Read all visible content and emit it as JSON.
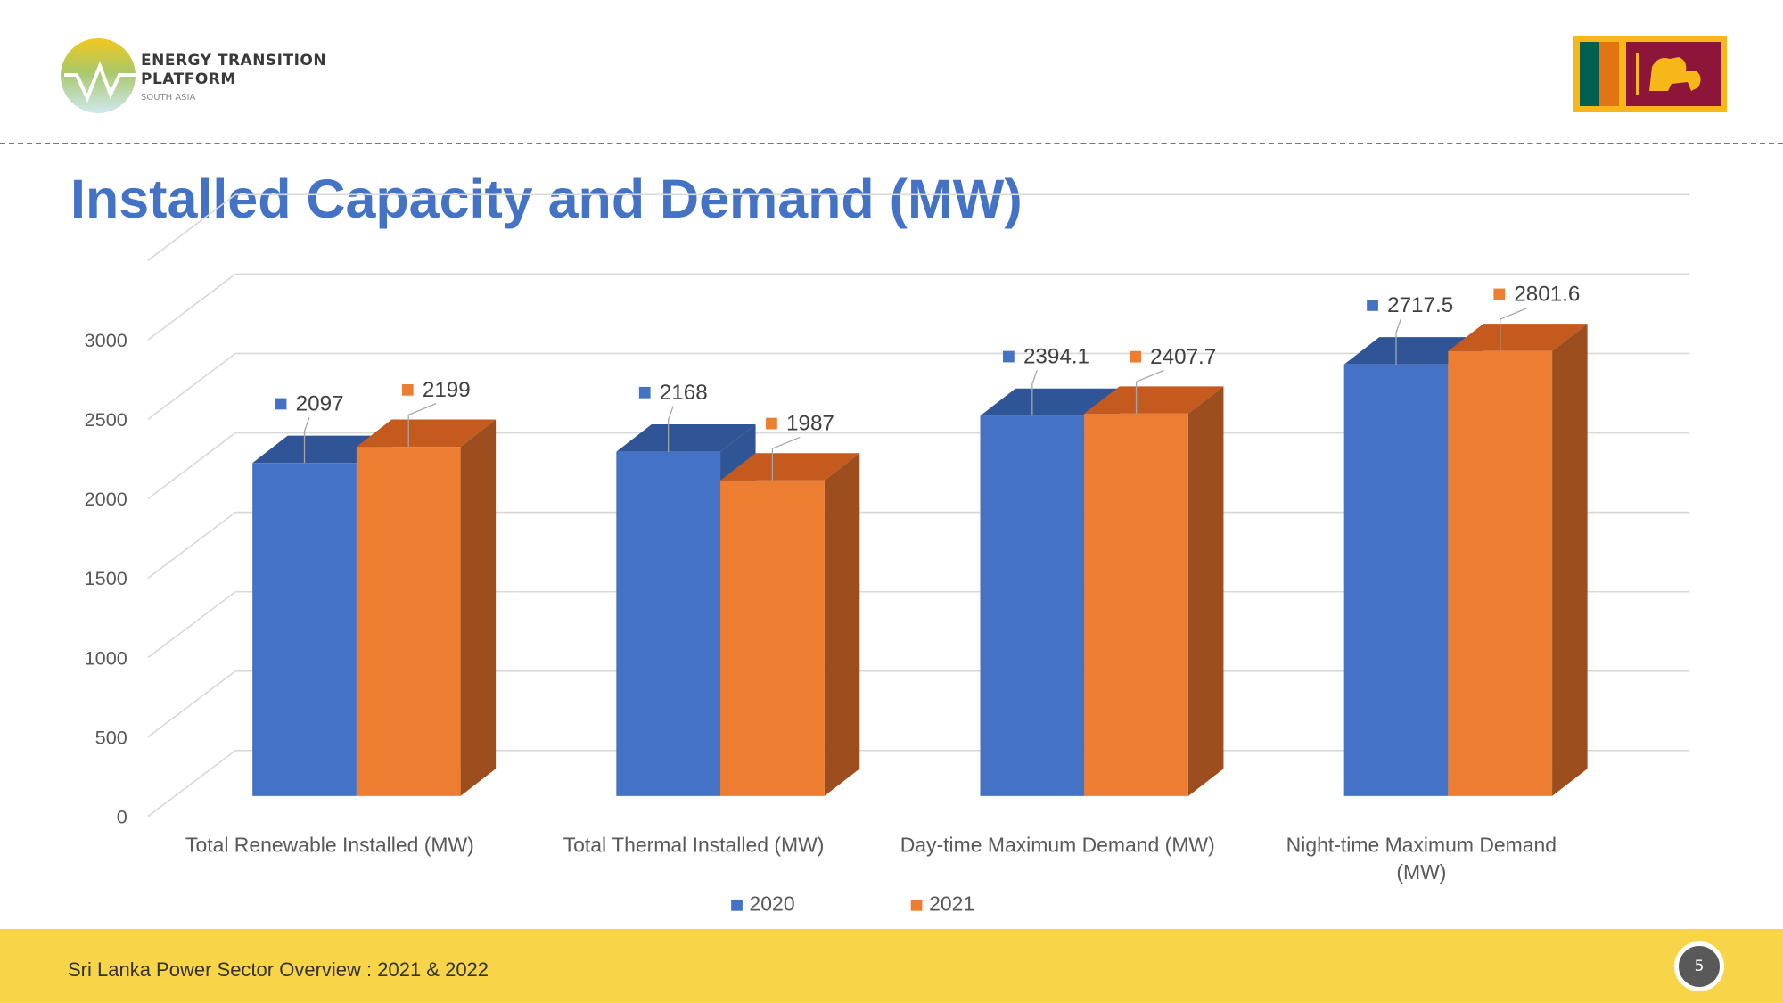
{
  "header": {
    "logo_line1": "ENERGY TRANSITION",
    "logo_line2": "PLATFORM",
    "logo_sub": "SOUTH ASIA",
    "title": "Installed Capacity and Demand (MW)"
  },
  "footer": {
    "text": "Sri Lanka Power Sector Overview : 2021 & 2022",
    "page_number": "5"
  },
  "colors": {
    "blue": "#4472C4",
    "blue_top": "#2F5597",
    "orange": "#ED7D31",
    "orange_top": "#C55A1E",
    "orange_side": "#9C4E1F",
    "footer": "#F8D548"
  },
  "chart_data": {
    "type": "bar",
    "title": "",
    "categories": [
      "Total Renewable Installed (MW)",
      "Total Thermal Installed (MW)",
      "Day-time Maximum Demand (MW)",
      "Night-time Maximum Demand (MW)"
    ],
    "category_lines": [
      [
        "Total Renewable Installed (MW)"
      ],
      [
        "Total Thermal Installed (MW)"
      ],
      [
        "Day-time Maximum Demand (MW)"
      ],
      [
        "Night-time Maximum Demand",
        "(MW)"
      ]
    ],
    "series": [
      {
        "name": "2020",
        "values": [
          2097,
          2168,
          2394.1,
          2717.5
        ],
        "labels": [
          "2097",
          "2168",
          "2394.1",
          "2717.5"
        ]
      },
      {
        "name": "2021",
        "values": [
          2199,
          1987,
          2407.7,
          2801.6
        ],
        "labels": [
          "2199",
          "1987",
          "2407.7",
          "2801.6"
        ]
      }
    ],
    "ylim": [
      0,
      3000
    ],
    "yticks": [
      "0",
      "500",
      "1000",
      "1500",
      "2000",
      "2500",
      "3000"
    ],
    "grid": true,
    "legend": "bottom",
    "style": "3d-clustered-column"
  }
}
